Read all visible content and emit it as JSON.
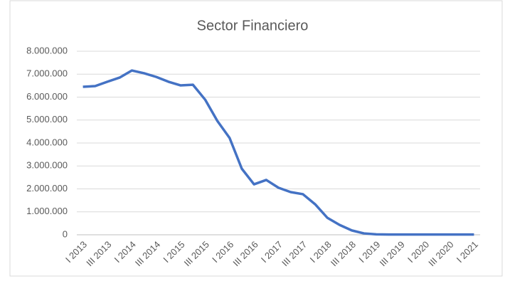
{
  "chart_data": {
    "type": "line",
    "title": "Sector Financiero",
    "categories": [
      "I 2013",
      null,
      "III 2013",
      null,
      "I 2014",
      null,
      "III 2014",
      null,
      "I 2015",
      null,
      "III 2015",
      null,
      "I 2016",
      null,
      "III 2016",
      null,
      "I 2017",
      null,
      "III 2017",
      null,
      "I 2018",
      null,
      "III 2018",
      null,
      "I 2019",
      null,
      "III 2019",
      null,
      "I 2020",
      null,
      "III 2020",
      null,
      "I 2021"
    ],
    "series": [
      {
        "name": "Sector Financiero",
        "color": "#4472c4",
        "values": [
          6450000,
          6480000,
          6670000,
          6850000,
          7160000,
          7040000,
          6880000,
          6670000,
          6510000,
          6540000,
          5890000,
          4960000,
          4220000,
          2880000,
          2200000,
          2390000,
          2050000,
          1860000,
          1770000,
          1330000,
          740000,
          430000,
          190000,
          60000,
          20000,
          10000,
          10000,
          10000,
          10000,
          10000,
          10000,
          10000,
          10000
        ]
      }
    ],
    "ylim": [
      0,
      8000000
    ],
    "yticks": [
      0,
      {
        "value": 1000000,
        "label": "1.000.000"
      },
      {
        "value": 2000000,
        "label": "2.000.000"
      },
      {
        "value": 3000000,
        "label": "3.000.000"
      },
      {
        "value": 4000000,
        "label": "4.000.000"
      },
      {
        "value": 5000000,
        "label": "5.000.000"
      },
      {
        "value": 6000000,
        "label": "6.000.000"
      },
      {
        "value": 7000000,
        "label": "7.000.000"
      },
      {
        "value": 8000000,
        "label": "8.000.000"
      }
    ],
    "grid": true
  }
}
